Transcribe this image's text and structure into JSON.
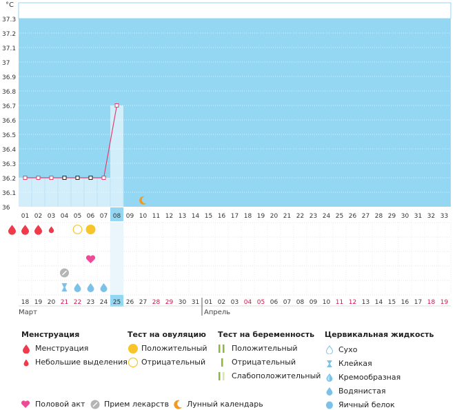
{
  "chart_data": {
    "type": "line",
    "ylabel": "°C",
    "ylim": [
      36.0,
      37.35
    ],
    "y_ticks": [
      "37.3",
      "37.2",
      "37.1",
      "37",
      "36.9",
      "36.8",
      "36.7",
      "36.6",
      "36.5",
      "36.4",
      "36.3",
      "36.2",
      "36.1",
      "36"
    ],
    "cycle_days": [
      "01",
      "02",
      "03",
      "04",
      "05",
      "06",
      "07",
      "08",
      "09",
      "10",
      "11",
      "12",
      "13",
      "14",
      "15",
      "16",
      "17",
      "18",
      "19",
      "20",
      "21",
      "22",
      "23",
      "24",
      "25",
      "26",
      "27",
      "28",
      "29",
      "30",
      "31",
      "32",
      "33"
    ],
    "current_day": "08",
    "temperature": [
      {
        "day": 1,
        "value": 36.2,
        "marker": "pink"
      },
      {
        "day": 2,
        "value": 36.2,
        "marker": "pink"
      },
      {
        "day": 3,
        "value": 36.2,
        "marker": "pink"
      },
      {
        "day": 4,
        "value": 36.2,
        "marker": "dark"
      },
      {
        "day": 5,
        "value": 36.2,
        "marker": "dark"
      },
      {
        "day": 6,
        "value": 36.2,
        "marker": "dark"
      },
      {
        "day": 7,
        "value": 36.2,
        "marker": "pink"
      },
      {
        "day": 8,
        "value": 36.7,
        "marker": "pink"
      }
    ],
    "moon_day": 10,
    "calendar_dates": [
      "18",
      "19",
      "20",
      "21",
      "22",
      "23",
      "24",
      "25",
      "26",
      "27",
      "28",
      "29",
      "30",
      "31",
      "01",
      "02",
      "03",
      "04",
      "05",
      "06",
      "07",
      "08",
      "09",
      "10",
      "11",
      "12",
      "13",
      "14",
      "15",
      "16",
      "17",
      "18",
      "19"
    ],
    "red_dates_index": [
      3,
      4,
      10,
      11,
      17,
      18,
      24,
      25,
      31,
      32
    ],
    "current_date": "25",
    "months": [
      {
        "label": "Март",
        "start_index": 0
      },
      {
        "label": "Апрель",
        "start_index": 14
      }
    ],
    "events": {
      "menstruation": [
        {
          "day": 1,
          "type": "big"
        },
        {
          "day": 2,
          "type": "big"
        },
        {
          "day": 3,
          "type": "big"
        },
        {
          "day": 4,
          "type": "small"
        }
      ],
      "ovulation_test": [
        {
          "day": 6,
          "result": "negative"
        },
        {
          "day": 7,
          "result": "positive"
        }
      ],
      "sex": [
        7
      ],
      "medication": [
        5
      ],
      "cervical": [
        {
          "day": 5,
          "type": "sticky"
        },
        {
          "day": 6,
          "type": "watery"
        },
        {
          "day": 7,
          "type": "watery"
        },
        {
          "day": 8,
          "type": "watery"
        }
      ]
    }
  },
  "legend": {
    "menstruation": {
      "title": "Менструация",
      "items": [
        "Менструация",
        "Небольшие выделения"
      ]
    },
    "ovulation": {
      "title": "Тест на овуляцию",
      "items": [
        "Положительный",
        "Отрицательный"
      ]
    },
    "pregnancy": {
      "title": "Тест на беременность",
      "items": [
        "Положительный",
        "Отрицательный",
        "Слабоположительный"
      ]
    },
    "cervical": {
      "title": "Цервикальная жидкость",
      "items": [
        "Сухо",
        "Клейкая",
        "Кремообразная",
        "Водянистая",
        "Яичный белок"
      ]
    },
    "bottom": [
      "Половой акт",
      "Прием лекарств",
      "Лунный календарь"
    ]
  },
  "colors": {
    "plot_bg": "#93d7f3",
    "past_bg": "#d3eefb",
    "line": "#e0406e",
    "drop": "#ef3a4c",
    "ovu": "#f7c52a",
    "heart": "#f04a97",
    "water": "#7cc2e8",
    "moon": "#f29a1f",
    "preg": "#8db63c",
    "red_text": "#d0134a"
  }
}
